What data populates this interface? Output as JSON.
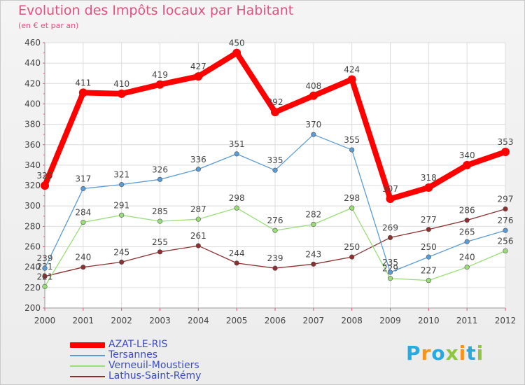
{
  "header": {
    "title": "Evolution des Impôts locaux par Habitant",
    "subtitle": "(en € et par an)"
  },
  "brand": {
    "text": "Proxiti"
  },
  "chart_data": {
    "type": "line",
    "title": "Evolution des Impôts locaux par Habitant",
    "subtitle": "(en € et par an)",
    "xlabel": "",
    "ylabel": "",
    "x": [
      "2000",
      "2001",
      "2002",
      "2003",
      "2004",
      "2005",
      "2006",
      "2007",
      "2008",
      "2009",
      "2010",
      "2011",
      "2012"
    ],
    "ylim": [
      200,
      460
    ],
    "yticks": [
      200,
      220,
      240,
      260,
      280,
      300,
      320,
      340,
      360,
      380,
      400,
      420,
      440,
      460
    ],
    "grid": true,
    "legend_position": "bottom-left",
    "series": [
      {
        "name": "AZAT-LE-RIS",
        "color": "#ff0000",
        "emphasis": "thick",
        "values": [
          320,
          411,
          410,
          419,
          427,
          450,
          392,
          408,
          424,
          307,
          318,
          340,
          353
        ]
      },
      {
        "name": "Tersannes",
        "color": "#5b9bd5",
        "emphasis": "normal",
        "values": [
          239,
          317,
          321,
          326,
          336,
          351,
          335,
          370,
          355,
          235,
          250,
          265,
          276
        ]
      },
      {
        "name": "Verneuil-Moustiers",
        "color": "#99dd77",
        "emphasis": "normal",
        "values": [
          221,
          284,
          291,
          285,
          287,
          298,
          276,
          282,
          298,
          229,
          227,
          240,
          256
        ]
      },
      {
        "name": "Lathus-Saint-Rémy",
        "color": "#8b2f2f",
        "emphasis": "normal",
        "values": [
          231,
          240,
          245,
          255,
          261,
          244,
          239,
          243,
          250,
          269,
          277,
          286,
          297
        ]
      }
    ]
  }
}
